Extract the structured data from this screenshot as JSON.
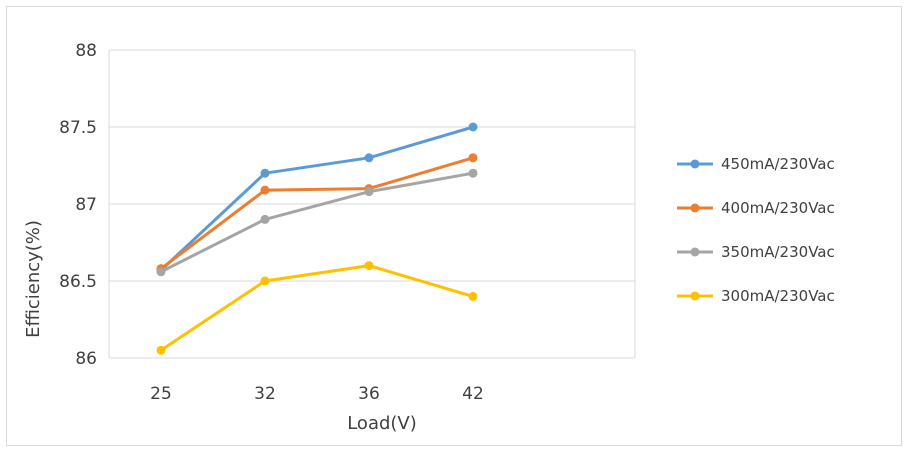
{
  "chart_data": {
    "type": "line",
    "title": "",
    "xlabel": "Load(V)",
    "ylabel": "Efficiency(%)",
    "categories": [
      "25",
      "32",
      "36",
      "42"
    ],
    "ylim": [
      86,
      88
    ],
    "yticks": [
      "86",
      "86.5",
      "87",
      "87.5",
      "88"
    ],
    "grid": true,
    "legend_position": "right",
    "series": [
      {
        "name": "450mA/230Vac",
        "color": "#5b9bd5",
        "values": [
          86.57,
          87.2,
          87.3,
          87.5
        ]
      },
      {
        "name": "400mA/230Vac",
        "color": "#ed7d31",
        "values": [
          86.58,
          87.09,
          87.1,
          87.3
        ]
      },
      {
        "name": "350mA/230Vac",
        "color": "#a5a5a5",
        "values": [
          86.56,
          86.9,
          87.08,
          87.2
        ]
      },
      {
        "name": "300mA/230Vac",
        "color": "#ffc000",
        "values": [
          86.05,
          86.5,
          86.6,
          86.4
        ]
      }
    ]
  }
}
